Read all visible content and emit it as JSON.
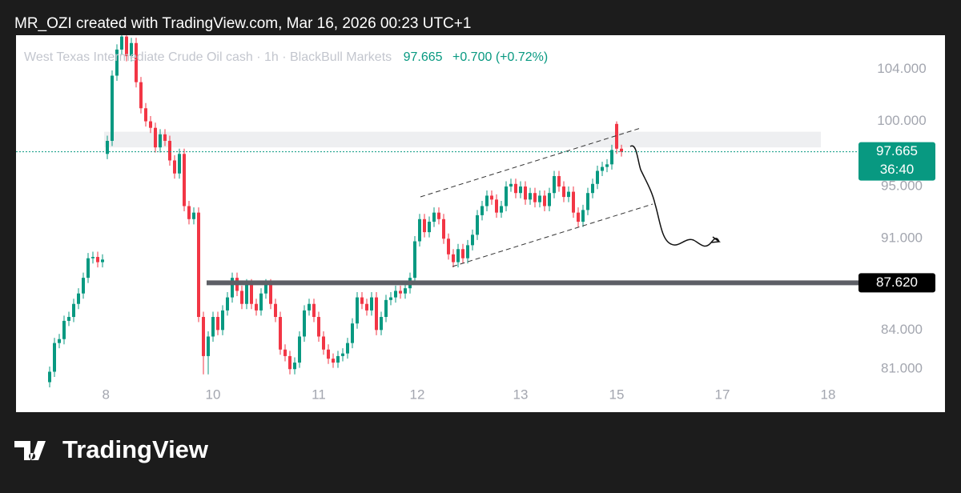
{
  "watermark": "MR_OZI created with TradingView.com, Mar 16, 2026 00:23 UTC+1",
  "branding": "TradingView",
  "chart_data": {
    "type": "candlestick",
    "title": "West Texas Intermediate Crude Oil cash · 1h · BlackBull Markets",
    "header_price": "97.665",
    "header_change": "+0.700 (+0.72%)",
    "up_color": "#089981",
    "down_color": "#f23645",
    "x": [
      1,
      2,
      3,
      4,
      5,
      6,
      7,
      8,
      9,
      10,
      11,
      12,
      13,
      14,
      15,
      16,
      17,
      18,
      19,
      20,
      21,
      22,
      23,
      24,
      25,
      26,
      27,
      28,
      29,
      30,
      31,
      32,
      33,
      34,
      35,
      36,
      37,
      38,
      39,
      40,
      41,
      42,
      43,
      44,
      45,
      46,
      47,
      48,
      49,
      50,
      51,
      52,
      53,
      54,
      55,
      56,
      57,
      58,
      59,
      60,
      61,
      62,
      63,
      64,
      65,
      66,
      67,
      68,
      69,
      70,
      71,
      72,
      73,
      74,
      75,
      76,
      77,
      78,
      79,
      80,
      81,
      82,
      83,
      84,
      85,
      86,
      87,
      88,
      89,
      90,
      91,
      92,
      93,
      94,
      95,
      96,
      97,
      98,
      99,
      100,
      101,
      102,
      103,
      104,
      105,
      106,
      107,
      108,
      109,
      110,
      111,
      112,
      113,
      114,
      115,
      116,
      117,
      118,
      119,
      120
    ],
    "open": [
      80.0,
      80.8,
      83.0,
      83.3,
      84.7,
      85.0,
      86.0,
      86.8,
      88.0,
      89.5,
      89.6,
      89.2,
      97.5,
      98.5,
      103.5,
      105.5,
      106.5,
      105,
      106,
      103,
      101,
      100,
      99.5,
      98,
      99,
      98.5,
      97,
      96,
      97.5,
      93.5,
      92.5,
      93,
      85,
      82,
      83.5,
      85,
      84,
      85.5,
      86.5,
      88,
      87,
      86,
      87.5,
      86,
      85.5,
      86.8,
      87.5,
      86,
      85,
      82.5,
      82,
      81,
      81.5,
      83.5,
      85.5,
      86,
      85,
      83.5,
      82.5,
      81.8,
      81.5,
      82,
      82.2,
      83,
      84.5,
      86.5,
      86,
      85.5,
      86.5,
      84,
      85,
      86.3,
      86.5,
      87,
      86.8,
      87.2,
      88,
      90.8,
      92.5,
      91.5,
      92.3,
      93,
      92.5,
      91,
      89.8,
      89.2,
      90.2,
      89.5,
      90.5,
      91.3,
      92.8,
      93.5,
      94.3,
      94,
      93,
      93.5,
      95,
      95.2,
      94.5,
      95,
      94,
      94.5,
      93.8,
      94.3,
      93.5,
      94.5,
      95.8,
      95,
      94.2,
      94.6,
      93,
      92.3,
      93.2,
      94.5,
      95.2,
      96.2,
      96.5,
      96.7,
      99.8,
      97.9
    ],
    "high": [
      81.2,
      83.4,
      83.7,
      85.1,
      85.4,
      86.4,
      87.2,
      88.4,
      89.9,
      90.0,
      90.0,
      89.8,
      98.9,
      103.9,
      105.9,
      106.9,
      106.9,
      106.4,
      106.4,
      103.4,
      101.4,
      100.4,
      99.9,
      99.4,
      99.4,
      98.9,
      97.4,
      97.9,
      97.9,
      93.9,
      93.4,
      93.4,
      85.4,
      83.9,
      85.4,
      85.4,
      85.9,
      86.9,
      88.4,
      88.4,
      87.4,
      87.9,
      87.9,
      86.4,
      87.2,
      87.9,
      87.9,
      86.4,
      85.4,
      82.9,
      82.4,
      81.9,
      83.9,
      85.9,
      86.4,
      86.4,
      85.4,
      83.9,
      82.9,
      82.2,
      82.4,
      82.6,
      83.4,
      84.9,
      86.9,
      86.9,
      86.4,
      86.9,
      86.9,
      85.4,
      86.7,
      86.9,
      87.4,
      87.4,
      87.6,
      88.4,
      91.2,
      92.9,
      92.9,
      92.7,
      93.4,
      93.4,
      92.9,
      91.4,
      90.2,
      90.6,
      90.6,
      90.9,
      91.7,
      93.2,
      93.9,
      94.7,
      94.7,
      94.4,
      93.9,
      95.4,
      95.6,
      95.6,
      95.4,
      95.4,
      94.9,
      94.9,
      94.7,
      94.7,
      94.9,
      96.2,
      96.2,
      95.4,
      95.0,
      95.0,
      93.4,
      93.6,
      94.9,
      95.6,
      96.6,
      96.9,
      97.1,
      98.2,
      100.0,
      98.2
    ],
    "low": [
      79.6,
      80.4,
      82.6,
      82.9,
      84.3,
      84.6,
      85.6,
      86.4,
      87.6,
      89.1,
      88.8,
      88.8,
      97.1,
      98.1,
      103.1,
      105.1,
      104.6,
      104.6,
      102.6,
      100.6,
      99.6,
      99.1,
      97.6,
      97.6,
      98.1,
      96.6,
      95.6,
      95.6,
      93.1,
      92.1,
      92.1,
      84.6,
      80.6,
      80.6,
      83.1,
      83.6,
      83.6,
      85.1,
      86.1,
      86.6,
      85.6,
      85.6,
      85.6,
      85.1,
      85.1,
      86.4,
      85.6,
      84.6,
      82.1,
      81.6,
      80.6,
      80.6,
      81.1,
      83.1,
      85.1,
      84.6,
      83.1,
      82.1,
      81.4,
      81.1,
      81.1,
      81.6,
      81.8,
      82.6,
      84.1,
      85.6,
      85.1,
      85.1,
      83.6,
      83.6,
      84.6,
      85.9,
      86.1,
      86.4,
      86.4,
      86.8,
      87.6,
      90.4,
      91.1,
      91.1,
      91.9,
      92.1,
      90.6,
      89.4,
      88.8,
      88.8,
      89.1,
      89.1,
      90.1,
      90.9,
      92.4,
      93.1,
      93.6,
      92.6,
      92.6,
      93.1,
      94.6,
      94.1,
      94.1,
      93.6,
      93.6,
      93.4,
      93.4,
      93.1,
      93.1,
      94.1,
      94.6,
      93.8,
      93.8,
      92.6,
      91.9,
      91.9,
      92.8,
      94.1,
      94.8,
      95.8,
      96.1,
      96.3,
      97.5,
      97.3
    ],
    "close": [
      80.8,
      83.0,
      83.3,
      84.7,
      85.0,
      86.0,
      86.8,
      88.0,
      89.5,
      89.6,
      89.2,
      89.4,
      98.5,
      103.5,
      105.5,
      106.5,
      105,
      106,
      103,
      101,
      100,
      99.5,
      98,
      99,
      98.5,
      97,
      96,
      97.5,
      93.5,
      92.5,
      93,
      85,
      82,
      83.5,
      85,
      84,
      85.5,
      86.5,
      88,
      87,
      86,
      87.5,
      86,
      85.5,
      86.8,
      87.5,
      86,
      85,
      82.5,
      82,
      81,
      81.5,
      83.5,
      85.5,
      86,
      85,
      83.5,
      82.5,
      81.8,
      81.5,
      82,
      82.2,
      83,
      84.5,
      86.5,
      86,
      85.5,
      86.5,
      84,
      85,
      86.3,
      86.5,
      87,
      86.8,
      87.2,
      88,
      90.8,
      92.5,
      91.5,
      92.3,
      93,
      92.5,
      91,
      89.8,
      89.2,
      90.2,
      89.5,
      90.5,
      91.3,
      92.8,
      93.5,
      94.3,
      94,
      93,
      93.5,
      95,
      95.2,
      94.5,
      95,
      94,
      94.5,
      93.8,
      94.3,
      93.5,
      94.5,
      95.8,
      95,
      94.2,
      94.6,
      93,
      92.3,
      93.2,
      94.5,
      95.2,
      96.2,
      96.5,
      96.7,
      97.8,
      97.9,
      97.665
    ],
    "xlim": [
      -6,
      167
    ],
    "xticks": [
      {
        "value": 12.7,
        "label": "8"
      },
      {
        "value": 35,
        "label": "10"
      },
      {
        "value": 57,
        "label": "11"
      },
      {
        "value": 77.5,
        "label": "12"
      },
      {
        "value": 99,
        "label": "13"
      },
      {
        "value": 119,
        "label": "15"
      },
      {
        "value": 141,
        "label": "17"
      },
      {
        "value": 163,
        "label": "18"
      }
    ],
    "ylim": [
      77.7,
      106.6
    ],
    "yticks": [
      {
        "value": 81,
        "label": "81.000"
      },
      {
        "value": 84,
        "label": "84.000"
      },
      {
        "value": 91,
        "label": "91.000"
      },
      {
        "value": 95,
        "label": "95.000"
      },
      {
        "value": 100,
        "label": "100.000"
      },
      {
        "value": 104,
        "label": "104.000"
      }
    ],
    "last_price": {
      "value": 97.665,
      "label": "97.665",
      "countdown": "36:40"
    },
    "price_line": {
      "value": 87.62,
      "label": "87.620"
    },
    "zone": [
      98.0,
      99.2
    ],
    "grid": false
  }
}
